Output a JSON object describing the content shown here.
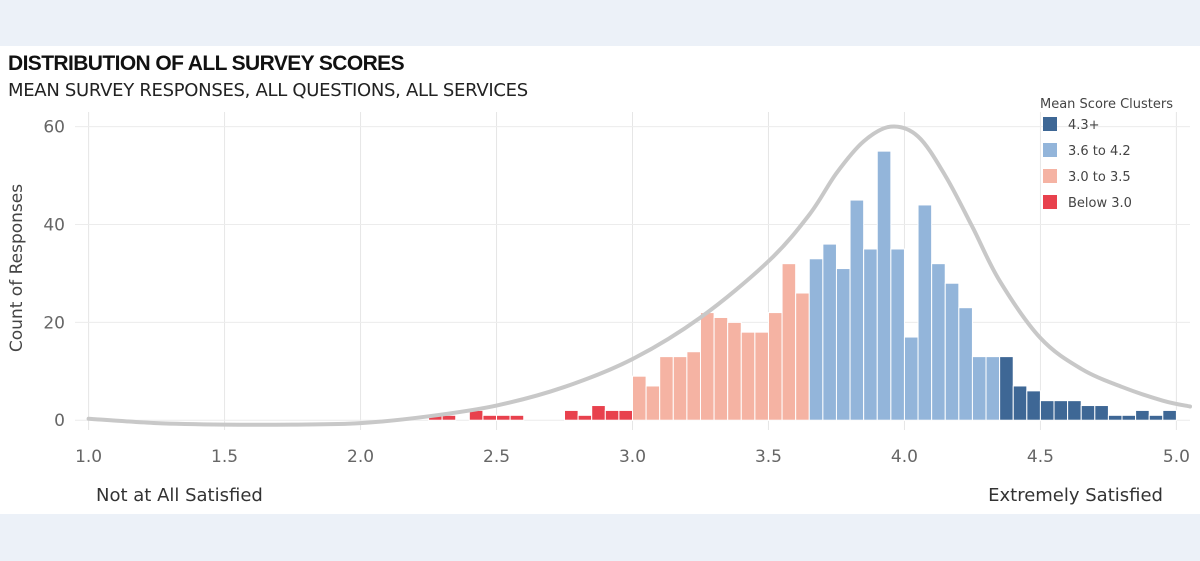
{
  "title": "DISTRIBUTION OF ALL SURVEY SCORES",
  "subtitle": "MEAN SURVEY RESPONSES, ALL QUESTIONS, ALL SERVICES",
  "scale_notes": {
    "low": "Not at All Satisfied",
    "high": "Extremely Satisfied"
  },
  "chart_data": {
    "type": "bar",
    "title": "DISTRIBUTION OF ALL SURVEY SCORES",
    "subtitle": "MEAN SURVEY RESPONSES, ALL QUESTIONS, ALL SERVICES",
    "xlabel": "",
    "ylabel": "Count of Responses",
    "xlim": [
      0.95,
      5.05
    ],
    "ylim": [
      -2,
      63
    ],
    "x_ticks": [
      "1.0",
      "1.5",
      "2.0",
      "2.5",
      "3.0",
      "3.5",
      "4.0",
      "4.5",
      "5.0"
    ],
    "y_ticks": [
      "0",
      "20",
      "40",
      "60"
    ],
    "grid": true,
    "bin_width": 0.05,
    "legend": {
      "title": "Mean Score Clusters",
      "position": "top-right",
      "items": [
        {
          "label": "4.3+",
          "color": "#3e6795"
        },
        {
          "label": "3.6 to 4.2",
          "color": "#93b5da"
        },
        {
          "label": "3.0 to 3.5",
          "color": "#f5b3a3"
        },
        {
          "label": "Below 3.0",
          "color": "#e8414d"
        }
      ]
    },
    "bins": [
      {
        "x": 2.3,
        "count": 1,
        "cluster": "Below 3.0"
      },
      {
        "x": 2.35,
        "count": 1,
        "cluster": "Below 3.0"
      },
      {
        "x": 2.45,
        "count": 2,
        "cluster": "Below 3.0"
      },
      {
        "x": 2.5,
        "count": 1,
        "cluster": "Below 3.0"
      },
      {
        "x": 2.55,
        "count": 1,
        "cluster": "Below 3.0"
      },
      {
        "x": 2.6,
        "count": 1,
        "cluster": "Below 3.0"
      },
      {
        "x": 2.8,
        "count": 2,
        "cluster": "Below 3.0"
      },
      {
        "x": 2.85,
        "count": 1,
        "cluster": "Below 3.0"
      },
      {
        "x": 2.9,
        "count": 3,
        "cluster": "Below 3.0"
      },
      {
        "x": 2.95,
        "count": 2,
        "cluster": "Below 3.0"
      },
      {
        "x": 3.0,
        "count": 2,
        "cluster": "Below 3.0"
      },
      {
        "x": 3.05,
        "count": 9,
        "cluster": "3.0 to 3.5"
      },
      {
        "x": 3.1,
        "count": 7,
        "cluster": "3.0 to 3.5"
      },
      {
        "x": 3.15,
        "count": 13,
        "cluster": "3.0 to 3.5"
      },
      {
        "x": 3.2,
        "count": 13,
        "cluster": "3.0 to 3.5"
      },
      {
        "x": 3.25,
        "count": 14,
        "cluster": "3.0 to 3.5"
      },
      {
        "x": 3.3,
        "count": 22,
        "cluster": "3.0 to 3.5"
      },
      {
        "x": 3.35,
        "count": 21,
        "cluster": "3.0 to 3.5"
      },
      {
        "x": 3.4,
        "count": 20,
        "cluster": "3.0 to 3.5"
      },
      {
        "x": 3.45,
        "count": 18,
        "cluster": "3.0 to 3.5"
      },
      {
        "x": 3.5,
        "count": 18,
        "cluster": "3.0 to 3.5"
      },
      {
        "x": 3.55,
        "count": 22,
        "cluster": "3.0 to 3.5"
      },
      {
        "x": 3.6,
        "count": 32,
        "cluster": "3.0 to 3.5"
      },
      {
        "x": 3.65,
        "count": 26,
        "cluster": "3.0 to 3.5"
      },
      {
        "x": 3.7,
        "count": 33,
        "cluster": "3.6 to 4.2"
      },
      {
        "x": 3.75,
        "count": 36,
        "cluster": "3.6 to 4.2"
      },
      {
        "x": 3.8,
        "count": 31,
        "cluster": "3.6 to 4.2"
      },
      {
        "x": 3.85,
        "count": 45,
        "cluster": "3.6 to 4.2"
      },
      {
        "x": 3.9,
        "count": 35,
        "cluster": "3.6 to 4.2"
      },
      {
        "x": 3.95,
        "count": 55,
        "cluster": "3.6 to 4.2"
      },
      {
        "x": 4.0,
        "count": 35,
        "cluster": "3.6 to 4.2"
      },
      {
        "x": 4.05,
        "count": 17,
        "cluster": "3.6 to 4.2"
      },
      {
        "x": 4.1,
        "count": 44,
        "cluster": "3.6 to 4.2"
      },
      {
        "x": 4.15,
        "count": 32,
        "cluster": "3.6 to 4.2"
      },
      {
        "x": 4.2,
        "count": 28,
        "cluster": "3.6 to 4.2"
      },
      {
        "x": 4.25,
        "count": 23,
        "cluster": "3.6 to 4.2"
      },
      {
        "x": 4.3,
        "count": 13,
        "cluster": "3.6 to 4.2"
      },
      {
        "x": 4.35,
        "count": 13,
        "cluster": "3.6 to 4.2"
      },
      {
        "x": 4.4,
        "count": 13,
        "cluster": "4.3+"
      },
      {
        "x": 4.45,
        "count": 7,
        "cluster": "4.3+"
      },
      {
        "x": 4.5,
        "count": 6,
        "cluster": "4.3+"
      },
      {
        "x": 4.55,
        "count": 4,
        "cluster": "4.3+"
      },
      {
        "x": 4.6,
        "count": 4,
        "cluster": "4.3+"
      },
      {
        "x": 4.65,
        "count": 4,
        "cluster": "4.3+"
      },
      {
        "x": 4.7,
        "count": 3,
        "cluster": "4.3+"
      },
      {
        "x": 4.75,
        "count": 3,
        "cluster": "4.3+"
      },
      {
        "x": 4.8,
        "count": 1,
        "cluster": "4.3+"
      },
      {
        "x": 4.85,
        "count": 1,
        "cluster": "4.3+"
      },
      {
        "x": 4.9,
        "count": 2,
        "cluster": "4.3+"
      },
      {
        "x": 4.95,
        "count": 1,
        "cluster": "4.3+"
      },
      {
        "x": 5.0,
        "count": 2,
        "cluster": "4.3+"
      }
    ],
    "curve": {
      "color": "#c8c8c8",
      "points": [
        [
          1.0,
          0.3
        ],
        [
          1.25,
          -0.6
        ],
        [
          1.5,
          -0.9
        ],
        [
          1.75,
          -0.9
        ],
        [
          2.0,
          -0.6
        ],
        [
          2.25,
          0.8
        ],
        [
          2.5,
          3.0
        ],
        [
          2.75,
          6.8
        ],
        [
          3.0,
          12.5
        ],
        [
          3.25,
          21.0
        ],
        [
          3.5,
          32.5
        ],
        [
          3.65,
          42.0
        ],
        [
          3.75,
          50.5
        ],
        [
          3.85,
          57.0
        ],
        [
          3.95,
          60.0
        ],
        [
          4.05,
          58.0
        ],
        [
          4.15,
          50.0
        ],
        [
          4.25,
          39.5
        ],
        [
          4.35,
          28.5
        ],
        [
          4.5,
          16.8
        ],
        [
          4.65,
          10.5
        ],
        [
          4.8,
          6.8
        ],
        [
          4.95,
          4.0
        ],
        [
          5.05,
          2.8
        ]
      ]
    }
  }
}
